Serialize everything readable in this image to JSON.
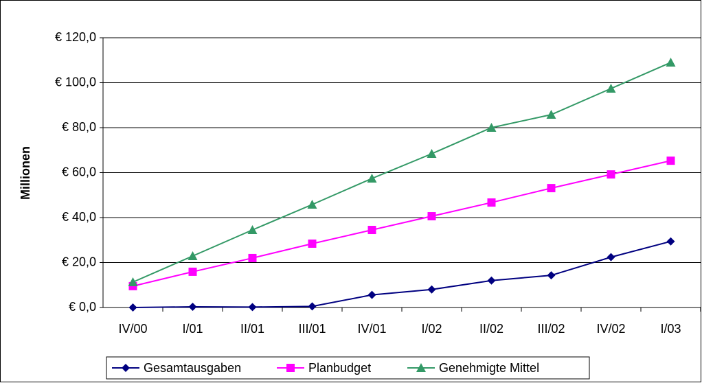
{
  "chart_data": {
    "type": "line",
    "y_label": "Millionen",
    "categories": [
      "IV/00",
      "I/01",
      "II/01",
      "III/01",
      "IV/01",
      "I/02",
      "II/02",
      "III/02",
      "IV/02",
      "I/03"
    ],
    "series": [
      {
        "name": "Gesamtausgaben",
        "color": "#000080",
        "marker": "diamond",
        "values": [
          0,
          0.3,
          0.2,
          0.5,
          5.6,
          8.0,
          12.0,
          14.3,
          22.4,
          29.4
        ]
      },
      {
        "name": "Planbudget",
        "color": "#ff00ff",
        "marker": "square",
        "values": [
          9.5,
          15.9,
          22.0,
          28.4,
          34.5,
          40.6,
          46.7,
          53.1,
          59.2,
          65.3
        ]
      },
      {
        "name": "Genehmigte Mittel",
        "color": "#339966",
        "marker": "triangle",
        "values": [
          11.3,
          22.9,
          34.5,
          45.8,
          57.4,
          68.4,
          80.0,
          85.8,
          97.4,
          109.0
        ]
      }
    ],
    "ylim": [
      0,
      120
    ],
    "yticks": [
      {
        "value": 0,
        "label": "€ 0,0"
      },
      {
        "value": 20,
        "label": "€ 20,0"
      },
      {
        "value": 40,
        "label": "€ 40,0"
      },
      {
        "value": 60,
        "label": "€ 60,0"
      },
      {
        "value": 80,
        "label": "€ 80,0"
      },
      {
        "value": 100,
        "label": "€ 100,0"
      },
      {
        "value": 120,
        "label": "€ 120,0"
      }
    ],
    "grid": true,
    "legend": "bottom"
  }
}
